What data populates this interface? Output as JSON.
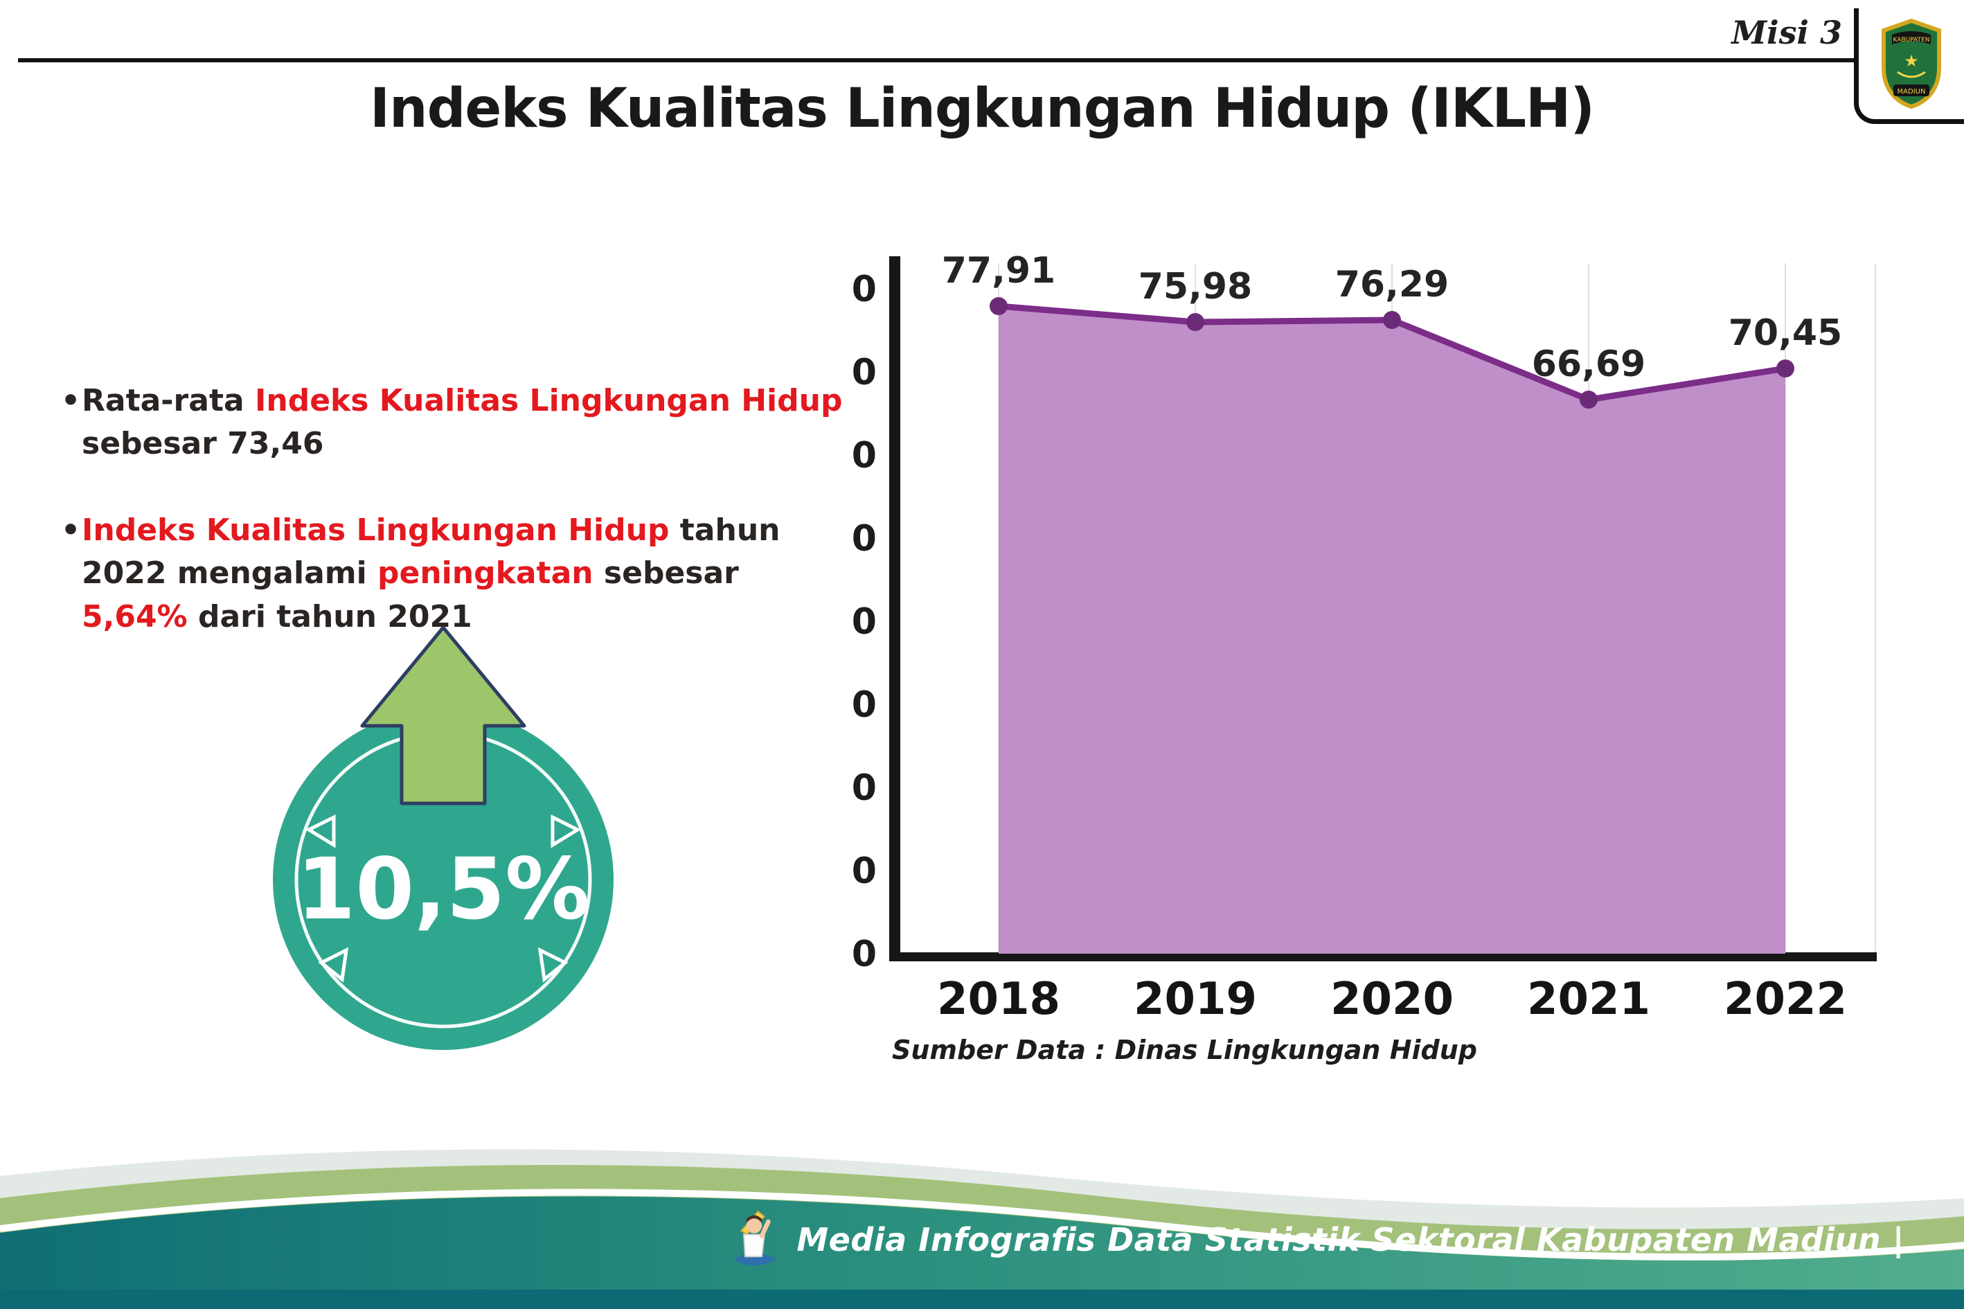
{
  "header": {
    "misi_label": "Misi 3",
    "title": "Indeks Kualitas Lingkungan Hidup (IKLH)",
    "logo": {
      "top_text": "KABUPATEN",
      "bottom_text": "MADIUN"
    }
  },
  "left_panel": {
    "bullet_char": "•",
    "bullets": [
      {
        "segments": [
          {
            "text": "Rata-rata ",
            "red": false
          },
          {
            "text": "Indeks Kualitas Lingkungan Hidup",
            "red": true
          },
          {
            "text": " sebesar 73,46",
            "red": false
          }
        ]
      },
      {
        "segments": [
          {
            "text": "Indeks Kualitas Lingkungan Hidup",
            "red": true
          },
          {
            "text": " tahun 2022 mengalami ",
            "red": false
          },
          {
            "text": "peningkatan",
            "red": true
          },
          {
            "text": " sebesar ",
            "red": false
          },
          {
            "text": "5,64%",
            "red": true
          },
          {
            "text": " dari tahun 2021",
            "red": false
          }
        ]
      }
    ],
    "badge": {
      "value": "10,5%",
      "circle_color": "#2fa78e",
      "arrow_color": "#9dc56a"
    }
  },
  "chart_data": {
    "type": "area",
    "categories": [
      "2018",
      "2019",
      "2020",
      "2021",
      "2022"
    ],
    "values": [
      77.91,
      75.98,
      76.29,
      66.69,
      70.45
    ],
    "value_labels": [
      "77,91",
      "75,98",
      "76,29",
      "66,69",
      "70,45"
    ],
    "title": "",
    "xlabel": "",
    "ylabel": "",
    "ylim": [
      0,
      80
    ],
    "ytick_step": 10,
    "grid": "vertical",
    "legend_position": "none",
    "fill_color": "#c08fc9",
    "line_color": "#7b2d88",
    "point_color": "#6b2a77",
    "source_note": "Sumber Data : Dinas Lingkungan Hidup"
  },
  "footer": {
    "caption": "Media Infografis Data Statistik Sektoral Kabupaten Madiun |"
  },
  "colors": {
    "accent_red": "#e3191f",
    "text_dark": "#2a2423",
    "teal_band": "#2a8f7e",
    "sage_band": "#a3c17b",
    "dark_strip": "#0c6a75"
  }
}
